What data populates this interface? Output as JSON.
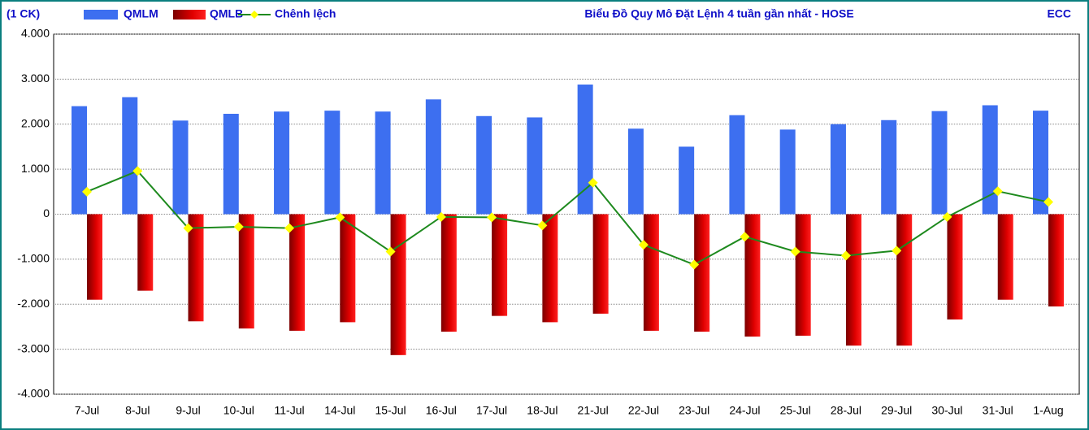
{
  "chart_data": {
    "type": "bar",
    "title": "Biểu Đồ Quy Mô Đặt Lệnh 4 tuần gần nhất - HOSE",
    "unit_label": "(1 CK)",
    "source": "ECC",
    "categories": [
      "7-Jul",
      "8-Jul",
      "9-Jul",
      "10-Jul",
      "11-Jul",
      "14-Jul",
      "15-Jul",
      "16-Jul",
      "17-Jul",
      "18-Jul",
      "21-Jul",
      "22-Jul",
      "23-Jul",
      "24-Jul",
      "25-Jul",
      "28-Jul",
      "29-Jul",
      "30-Jul",
      "31-Jul",
      "1-Aug"
    ],
    "series": [
      {
        "name": "QMLM",
        "color": "#3d6ff0",
        "type": "bar",
        "values": [
          2400,
          2600,
          2080,
          2230,
          2280,
          2300,
          2280,
          2550,
          2180,
          2150,
          2880,
          1900,
          1500,
          2200,
          1880,
          2000,
          2090,
          2290,
          2420,
          2300
        ]
      },
      {
        "name": "QMLB",
        "color": "#d40000",
        "type": "bar",
        "values": [
          -1900,
          -1700,
          -2380,
          -2540,
          -2590,
          -2400,
          -3130,
          -2610,
          -2260,
          -2400,
          -2210,
          -2590,
          -2610,
          -2720,
          -2700,
          -2920,
          -2920,
          -2340,
          -1900,
          -2050
        ]
      },
      {
        "name": "Chênh lệch",
        "color": "#1e8a1e",
        "marker_color": "#ffff00",
        "type": "line",
        "values": [
          500,
          960,
          -310,
          -280,
          -310,
          -70,
          -830,
          -60,
          -70,
          -250,
          700,
          -680,
          -1120,
          -500,
          -830,
          -920,
          -810,
          -60,
          510,
          270
        ]
      }
    ],
    "ylim": [
      -4000,
      4000
    ],
    "yticks": [
      {
        "value": -4000,
        "label": "-4.000"
      },
      {
        "value": -3000,
        "label": "-3.000"
      },
      {
        "value": -2000,
        "label": "-2.000"
      },
      {
        "value": -1000,
        "label": "-1.000"
      },
      0,
      {
        "value": 1000,
        "label": "1.000"
      },
      {
        "value": 2000,
        "label": "2.000"
      },
      {
        "value": 3000,
        "label": "3.000"
      },
      {
        "value": 4000,
        "label": "4.000"
      }
    ],
    "grid": true
  }
}
